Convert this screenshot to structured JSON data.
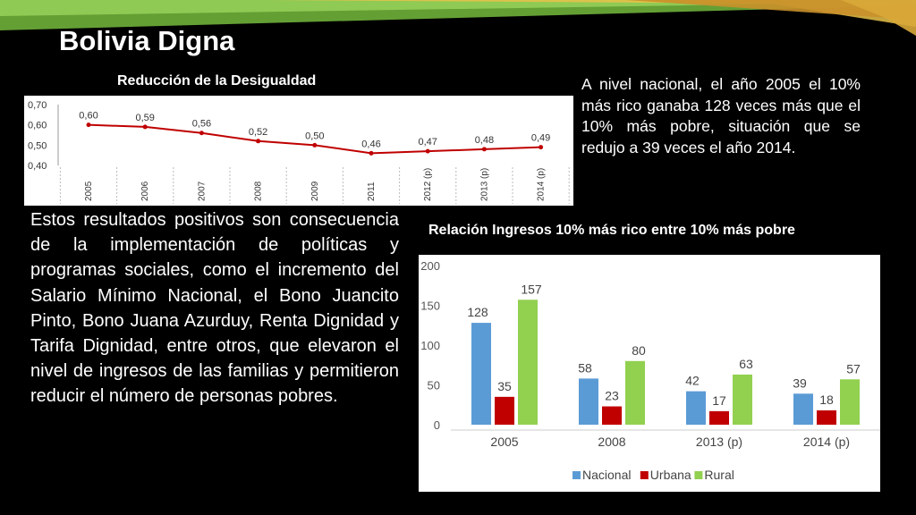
{
  "slide": {
    "title": "Bolivia Digna",
    "left_paragraph": "Estos resultados positivos son consecuencia de la implementación de políticas y programas sociales, como el incremento del Salario Mínimo Nacional, el Bono Juancito Pinto, Bono Juana Azurduy, Renta Dignidad y Tarifa Dignidad, entre otros, que elevaron el nivel de ingresos de las familias y permitieron reducir el número de personas pobres.",
    "right_paragraph": "A nivel nacional, el año 2005 el 10% más rico ganaba 128 veces más que el 10% más pobre, situación que se redujo a 39 veces el año 2014.",
    "colors": {
      "background": "#000000",
      "text": "#ffffff",
      "ribbon_green": "#7bc143",
      "ribbon_gold": "#e7b53a"
    }
  },
  "chart_data": [
    {
      "type": "line",
      "title": "Reducción de la Desigualdad",
      "categories": [
        "2005",
        "2006",
        "2007",
        "2008",
        "2009",
        "2011",
        "2012 (p)",
        "2013 (p)",
        "2014 (p)"
      ],
      "values": [
        0.6,
        0.59,
        0.56,
        0.52,
        0.5,
        0.46,
        0.47,
        0.48,
        0.49
      ],
      "value_labels": [
        "0,60",
        "0,59",
        "0,56",
        "0,52",
        "0,50",
        "0,46",
        "0,47",
        "0,48",
        "0,49"
      ],
      "yticks": [
        "0,40",
        "0,50",
        "0,60",
        "0,70"
      ],
      "ylim": [
        0.4,
        0.7
      ],
      "line_color": "#c00000"
    },
    {
      "type": "bar",
      "title": "Relación Ingresos 10% más rico entre 10% más pobre",
      "categories": [
        "2005",
        "2008",
        "2013 (p)",
        "2014 (p)"
      ],
      "yticks": [
        "0",
        "50",
        "100",
        "150",
        "200"
      ],
      "ylim": [
        0,
        200
      ],
      "legend_position": "bottom",
      "series": [
        {
          "name": "Nacional",
          "values": [
            128,
            58,
            42,
            39
          ],
          "color": "#5b9bd5"
        },
        {
          "name": "Urbana",
          "values": [
            35,
            23,
            17,
            18
          ],
          "color": "#c00000"
        },
        {
          "name": "Rural",
          "values": [
            157,
            80,
            63,
            57
          ],
          "color": "#92d050"
        }
      ]
    }
  ]
}
